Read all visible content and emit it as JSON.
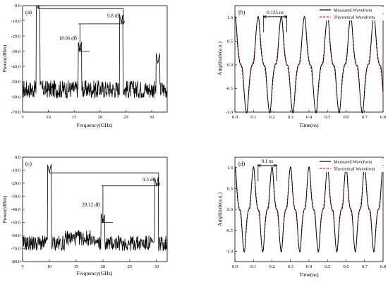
{
  "chart_data": [
    {
      "id": "a",
      "type": "line",
      "panel_label": "(a)",
      "xlabel": "Frequency(GHz)",
      "ylabel": "Power(dBm)",
      "xlim": [
        5,
        33
      ],
      "ylim": [
        -70,
        0
      ],
      "xticks": [
        5,
        10,
        15,
        20,
        25,
        30
      ],
      "yticks": [
        0,
        -10,
        -20,
        -30,
        -40,
        -50,
        -60,
        -70
      ],
      "noise_floor": -55,
      "peaks": [
        {
          "x": 8.0,
          "y": -2
        },
        {
          "x": 16.1,
          "y": -30
        },
        {
          "x": 24.1,
          "y": -12
        },
        {
          "x": 31.2,
          "y": -38
        }
      ],
      "annotations": [
        {
          "text": "9.8 dB",
          "from": [
            8.0,
            -2
          ],
          "to": [
            24.1,
            -12
          ]
        },
        {
          "text": "18.06 dB",
          "from": [
            16.1,
            -12
          ],
          "to": [
            16.1,
            -30
          ]
        }
      ]
    },
    {
      "id": "b",
      "type": "line",
      "panel_label": "(b)",
      "xlabel": "Time(ns)",
      "ylabel": "Amplitude(a.u.)",
      "xlim": [
        0,
        0.8
      ],
      "ylim": [
        -1.0,
        1.25
      ],
      "xticks": [
        0.0,
        0.1,
        0.2,
        0.3,
        0.4,
        0.5,
        0.6,
        0.7,
        0.8
      ],
      "yticks": [
        1.0,
        0.5,
        0.0,
        -0.5,
        -1.0
      ],
      "period_ns": 0.125,
      "series": [
        {
          "name": "Measured Waveform",
          "color": "#000000",
          "style": "solid"
        },
        {
          "name": "Theoretical Waveform",
          "color": "#e02020",
          "style": "dashed"
        }
      ],
      "annotations": [
        {
          "text": "0.125 ns",
          "x1": 0.155,
          "x2": 0.28,
          "y": 0.97
        }
      ]
    },
    {
      "id": "c",
      "type": "line",
      "panel_label": "(c)",
      "xlabel": "Frequency(GHz)",
      "ylabel": "Power(dBm)",
      "xlim": [
        5,
        32
      ],
      "ylim": [
        -80,
        0
      ],
      "xticks": [
        5,
        10,
        15,
        20,
        25,
        30
      ],
      "yticks": [
        0,
        -10,
        -20,
        -30,
        -40,
        -50,
        -60,
        -70,
        -80
      ],
      "noise_floor": -66,
      "peaks": [
        {
          "x": 10.0,
          "y": -12
        },
        {
          "x": 20.0,
          "y": -50
        },
        {
          "x": 30.0,
          "y": -22
        }
      ],
      "annotations": [
        {
          "text": "9.3 dB",
          "from": [
            10.0,
            -12
          ],
          "to": [
            30.0,
            -22
          ]
        },
        {
          "text": "28.12 dB",
          "from": [
            20.0,
            -22
          ],
          "to": [
            20.0,
            -50
          ]
        }
      ]
    },
    {
      "id": "d",
      "type": "line",
      "panel_label": "(d)",
      "xlabel": "Time(ns)",
      "ylabel": "Amplitude(a.u.)",
      "xlim": [
        0,
        0.8
      ],
      "ylim": [
        -1.25,
        1.25
      ],
      "xticks": [
        0.0,
        0.1,
        0.2,
        0.3,
        0.4,
        0.5,
        0.6,
        0.7,
        0.8
      ],
      "yticks": [
        1.0,
        0.5,
        0.0,
        -0.5,
        -1.0
      ],
      "period_ns": 0.1,
      "series": [
        {
          "name": "Measured Waveform",
          "color": "#000000",
          "style": "solid"
        },
        {
          "name": "Theoretical Waveform",
          "color": "#e02020",
          "style": "dashed"
        }
      ],
      "annotations": [
        {
          "text": "0.1 ns",
          "x1": 0.125,
          "x2": 0.225,
          "y": 1.0
        }
      ]
    }
  ]
}
